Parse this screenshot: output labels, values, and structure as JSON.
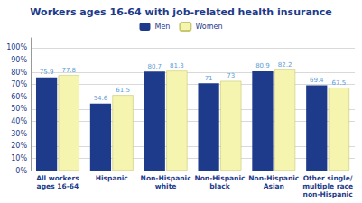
{
  "chart_data": {
    "type": "bar",
    "title": "Workers ages 16-64 with job-related health insurance",
    "categories": [
      "All workers\nages 16-64",
      "Hispanic",
      "Non-Hispanic\nwhite",
      "Non-Hispanic\nblack",
      "Non-Hispanic\nAsian",
      "Other single/\nmultiple race\nnon-Hispanic"
    ],
    "series": [
      {
        "name": "Men",
        "color": "#1e3a8a",
        "values": [
          75.9,
          54.6,
          80.7,
          71.0,
          80.9,
          69.4
        ]
      },
      {
        "name": "Women",
        "color": "#f5f5b0",
        "values": [
          77.8,
          61.5,
          81.3,
          73.0,
          82.2,
          67.5
        ]
      }
    ],
    "ylim": [
      0,
      108
    ],
    "yticks": [
      {
        "value": 0,
        "label": "0%"
      },
      {
        "value": 10,
        "label": "10%"
      },
      {
        "value": 20,
        "label": "20%"
      },
      {
        "value": 30,
        "label": "30%"
      },
      {
        "value": 40,
        "label": "40%"
      },
      {
        "value": 50,
        "label": "50%"
      },
      {
        "value": 60,
        "label": "60%"
      },
      {
        "value": 70,
        "label": "70%"
      },
      {
        "value": 80,
        "label": "80%"
      },
      {
        "value": 90,
        "label": "90%"
      },
      {
        "value": 100,
        "label": "100%"
      }
    ],
    "grid": true,
    "legend": "top",
    "data_labels": true
  }
}
